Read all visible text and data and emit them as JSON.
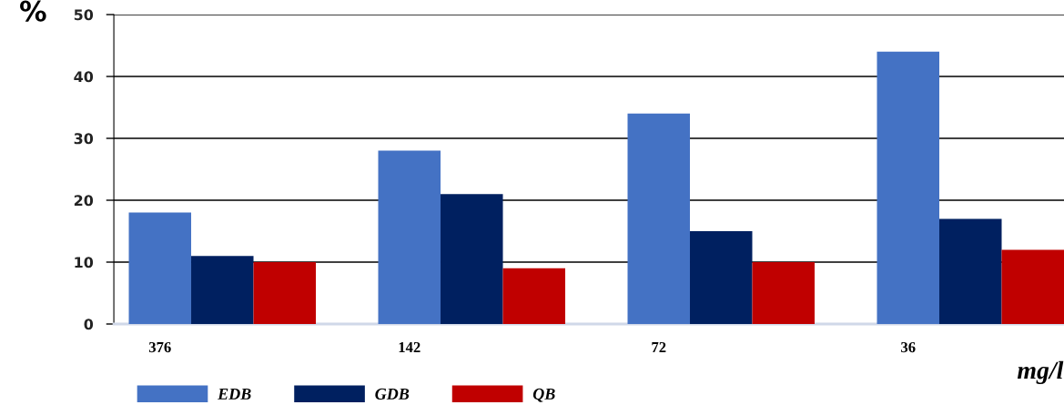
{
  "chart_data": {
    "type": "bar",
    "ylabel": "%",
    "xlabel": "mg/l",
    "categories": [
      "376",
      "142",
      "72",
      "36"
    ],
    "series": [
      {
        "name": "EDB",
        "color": "#4472c4",
        "values": [
          18,
          28,
          34,
          44
        ]
      },
      {
        "name": "GDB",
        "color": "#002060",
        "values": [
          11,
          21,
          15,
          17
        ]
      },
      {
        "name": "QB",
        "color": "#c00000",
        "values": [
          10,
          9,
          10,
          12
        ]
      }
    ],
    "ylim": [
      0,
      50
    ],
    "yticks": [
      0,
      10,
      20,
      30,
      40,
      50
    ],
    "grid": "y",
    "legend": "bottom"
  }
}
